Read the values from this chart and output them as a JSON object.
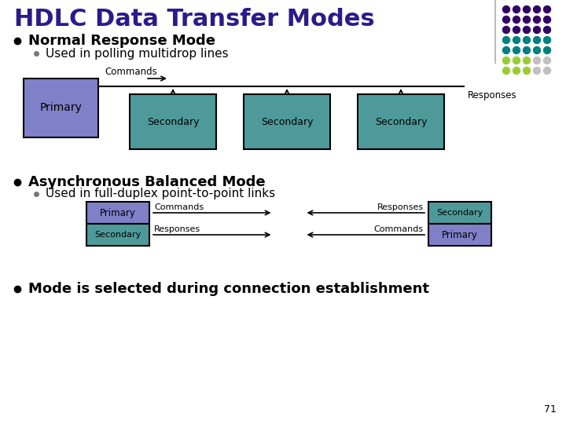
{
  "title": "HDLC Data Transfer Modes",
  "title_color": "#2B1B8A",
  "title_fontsize": 22,
  "bg_color": "#FFFFFF",
  "bullet1": "Normal Response Mode",
  "bullet1_sub": "Used in polling multidrop lines",
  "bullet2": "Asynchronous Balanced Mode",
  "bullet2_sub": "Used in full-duplex point-to-point links",
  "bullet3": "Mode is selected during connection establishment",
  "bullet_color": "#000000",
  "bullet_fontsize": 13,
  "sub_bullet_fontsize": 11,
  "primary_box_color": "#8080C8",
  "primary_box_edge": "#000000",
  "secondary_box_color": "#4E9A9A",
  "secondary_box_edge": "#000000",
  "page_number": "71",
  "dot_grid": [
    [
      "#330066",
      "#330066",
      "#330066",
      "#330066",
      "#330066"
    ],
    [
      "#330066",
      "#330066",
      "#330066",
      "#330066",
      "#330066"
    ],
    [
      "#330066",
      "#330066",
      "#330066",
      "#330066",
      "#330066"
    ],
    [
      "#008080",
      "#008080",
      "#008080",
      "#008080",
      "#008080"
    ],
    [
      "#008080",
      "#008080",
      "#008080",
      "#008080",
      "#008080"
    ],
    [
      "#9ACD32",
      "#9ACD32",
      "#9ACD32",
      "#C0C0C0",
      "#C0C0C0"
    ],
    [
      "#9ACD32",
      "#9ACD32",
      "#9ACD32",
      "#C0C0C0",
      "#C0C0C0"
    ]
  ]
}
